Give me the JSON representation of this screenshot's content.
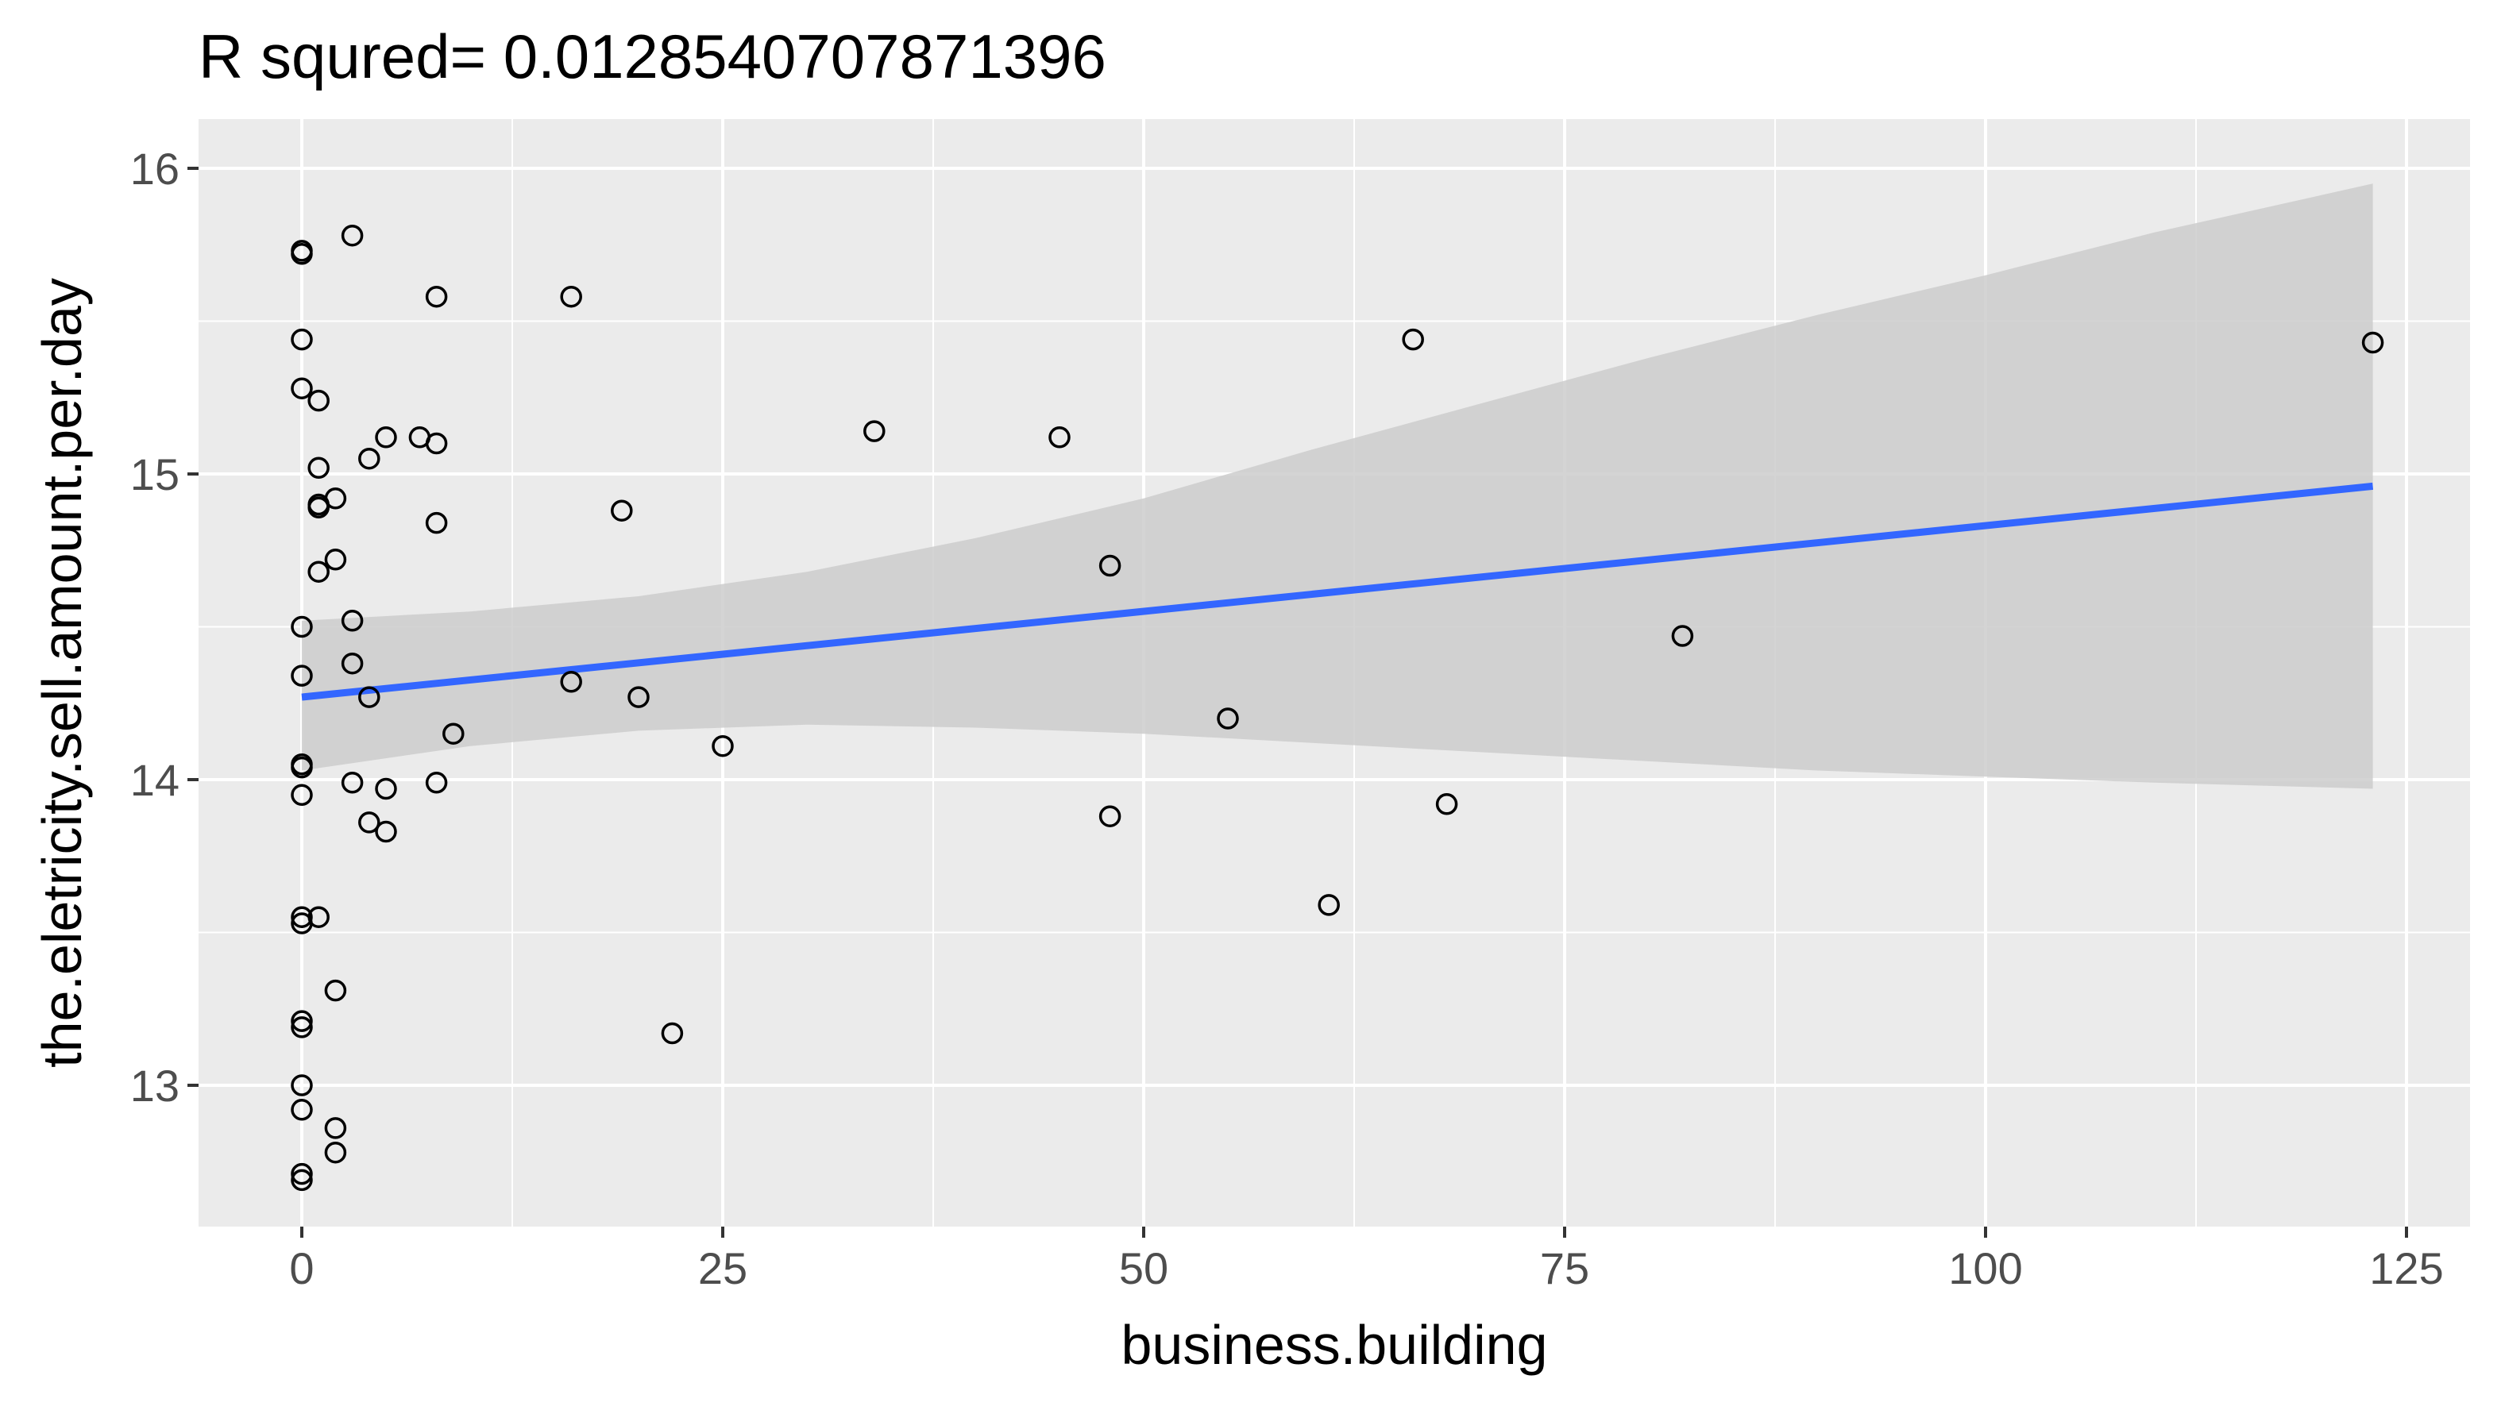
{
  "chart_data": {
    "type": "scatter",
    "title": "R squred= 0.0128540707871396",
    "xlabel": "business.building",
    "ylabel": "the.eletricity.sell.amount.per.day",
    "xlim": [
      -2.5,
      128
    ],
    "ylim": [
      12.56,
      16.1
    ],
    "x_ticks": [
      0,
      25,
      50,
      75,
      100,
      125
    ],
    "x_tick_labels": [
      "0",
      "25",
      "50",
      "75",
      "100",
      "125"
    ],
    "y_ticks": [
      13,
      14,
      15,
      16
    ],
    "y_tick_labels": [
      "13",
      "14",
      "15",
      "16"
    ],
    "grid": true,
    "legend": "none",
    "colors": {
      "panel_background": "#ebebeb",
      "gridline": "#ffffff",
      "point_stroke": "#000000",
      "regression_line": "#3366ff",
      "confidence_band": "#cccccc"
    },
    "points": [
      {
        "x": 0,
        "y": 15.73
      },
      {
        "x": 0,
        "y": 15.72
      },
      {
        "x": 3,
        "y": 15.78
      },
      {
        "x": 8,
        "y": 15.58
      },
      {
        "x": 16,
        "y": 15.58
      },
      {
        "x": 0,
        "y": 15.44
      },
      {
        "x": 66,
        "y": 15.44
      },
      {
        "x": 123,
        "y": 15.43
      },
      {
        "x": 0,
        "y": 15.28
      },
      {
        "x": 1,
        "y": 15.24
      },
      {
        "x": 34,
        "y": 15.14
      },
      {
        "x": 45,
        "y": 15.12
      },
      {
        "x": 5,
        "y": 15.12
      },
      {
        "x": 7,
        "y": 15.12
      },
      {
        "x": 8,
        "y": 15.1
      },
      {
        "x": 4,
        "y": 15.05
      },
      {
        "x": 1,
        "y": 15.02
      },
      {
        "x": 2,
        "y": 14.92
      },
      {
        "x": 1,
        "y": 14.9
      },
      {
        "x": 1,
        "y": 14.89
      },
      {
        "x": 19,
        "y": 14.88
      },
      {
        "x": 8,
        "y": 14.84
      },
      {
        "x": 2,
        "y": 14.72
      },
      {
        "x": 48,
        "y": 14.7
      },
      {
        "x": 1,
        "y": 14.68
      },
      {
        "x": 3,
        "y": 14.52
      },
      {
        "x": 0,
        "y": 14.5
      },
      {
        "x": 82,
        "y": 14.47
      },
      {
        "x": 3,
        "y": 14.38
      },
      {
        "x": 0,
        "y": 14.34
      },
      {
        "x": 16,
        "y": 14.32
      },
      {
        "x": 4,
        "y": 14.27
      },
      {
        "x": 20,
        "y": 14.27
      },
      {
        "x": 55,
        "y": 14.2
      },
      {
        "x": 9,
        "y": 14.15
      },
      {
        "x": 25,
        "y": 14.11
      },
      {
        "x": 0,
        "y": 14.05
      },
      {
        "x": 0,
        "y": 14.04
      },
      {
        "x": 3,
        "y": 13.99
      },
      {
        "x": 8,
        "y": 13.99
      },
      {
        "x": 5,
        "y": 13.97
      },
      {
        "x": 0,
        "y": 13.95
      },
      {
        "x": 68,
        "y": 13.92
      },
      {
        "x": 48,
        "y": 13.88
      },
      {
        "x": 4,
        "y": 13.86
      },
      {
        "x": 5,
        "y": 13.83
      },
      {
        "x": 61,
        "y": 13.59
      },
      {
        "x": 0,
        "y": 13.55
      },
      {
        "x": 1,
        "y": 13.55
      },
      {
        "x": 0,
        "y": 13.53
      },
      {
        "x": 2,
        "y": 13.31
      },
      {
        "x": 0,
        "y": 13.21
      },
      {
        "x": 0,
        "y": 13.19
      },
      {
        "x": 22,
        "y": 13.17
      },
      {
        "x": 0,
        "y": 13.0
      },
      {
        "x": 0,
        "y": 12.92
      },
      {
        "x": 2,
        "y": 12.86
      },
      {
        "x": 2,
        "y": 12.78
      },
      {
        "x": 0,
        "y": 12.71
      },
      {
        "x": 0,
        "y": 12.69
      }
    ],
    "regression": {
      "method": "lm",
      "x_range": [
        0,
        123
      ],
      "y_start": 14.27,
      "y_end": 14.96
    },
    "confidence_band": [
      {
        "x": 0,
        "lower": 14.03,
        "upper": 14.52
      },
      {
        "x": 10,
        "lower": 14.11,
        "upper": 14.55
      },
      {
        "x": 20,
        "lower": 14.16,
        "upper": 14.6
      },
      {
        "x": 30,
        "lower": 14.18,
        "upper": 14.68
      },
      {
        "x": 40,
        "lower": 14.17,
        "upper": 14.79
      },
      {
        "x": 50,
        "lower": 14.15,
        "upper": 14.92
      },
      {
        "x": 60,
        "lower": 14.12,
        "upper": 15.08
      },
      {
        "x": 70,
        "lower": 14.09,
        "upper": 15.23
      },
      {
        "x": 80,
        "lower": 14.06,
        "upper": 15.38
      },
      {
        "x": 90,
        "lower": 14.03,
        "upper": 15.52
      },
      {
        "x": 100,
        "lower": 14.01,
        "upper": 15.65
      },
      {
        "x": 110,
        "lower": 13.99,
        "upper": 15.79
      },
      {
        "x": 123,
        "lower": 13.97,
        "upper": 15.95
      }
    ]
  }
}
